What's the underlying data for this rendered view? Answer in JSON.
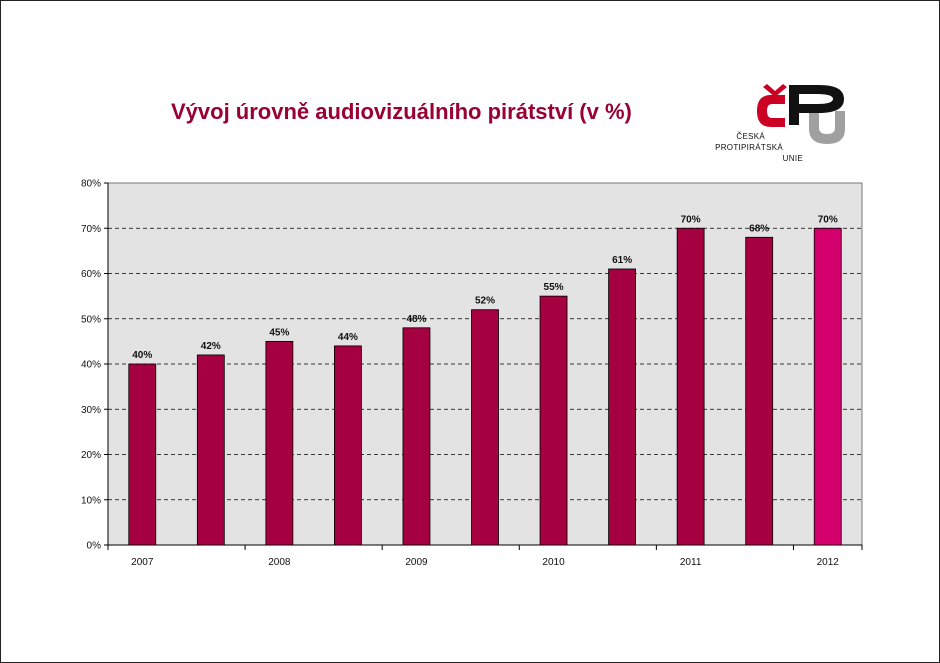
{
  "title": "Vývoj úrovně audiovizuálního pirátství (v %)",
  "logo": {
    "lines": [
      "ČESKÁ",
      "PROTIPIRÁTSKÁ",
      "UNIE"
    ],
    "colors": {
      "red": "#cc0022",
      "black": "#111111",
      "grey": "#a0a0a0"
    }
  },
  "chart_data": {
    "type": "bar",
    "title": "Vývoj úrovně audiovizuálního pirátství (v %)",
    "categories": [
      "2007",
      "",
      "2008",
      "",
      "2009",
      "",
      "2010",
      "",
      "2011",
      "",
      "2012"
    ],
    "values": [
      40,
      42,
      45,
      44,
      48,
      52,
      55,
      61,
      70,
      68,
      70
    ],
    "data_labels": [
      "40%",
      "42%",
      "45%",
      "44%",
      "48%",
      "52%",
      "55%",
      "61%",
      "70%",
      "68%",
      "70%"
    ],
    "bar_colors": [
      "#a50040",
      "#a50040",
      "#a50040",
      "#a50040",
      "#a50040",
      "#a50040",
      "#a50040",
      "#a50040",
      "#a50040",
      "#a50040",
      "#d4006e"
    ],
    "ylim": [
      0,
      80
    ],
    "yticks": [
      0,
      10,
      20,
      30,
      40,
      50,
      60,
      70,
      80
    ],
    "ytick_labels": [
      "0%",
      "10%",
      "20%",
      "30%",
      "40%",
      "50%",
      "60%",
      "70%",
      "80%"
    ],
    "xlabel": "",
    "ylabel": "",
    "grid": "horizontal dashed",
    "plot_background": "#e3e3e3",
    "legend": "none"
  }
}
